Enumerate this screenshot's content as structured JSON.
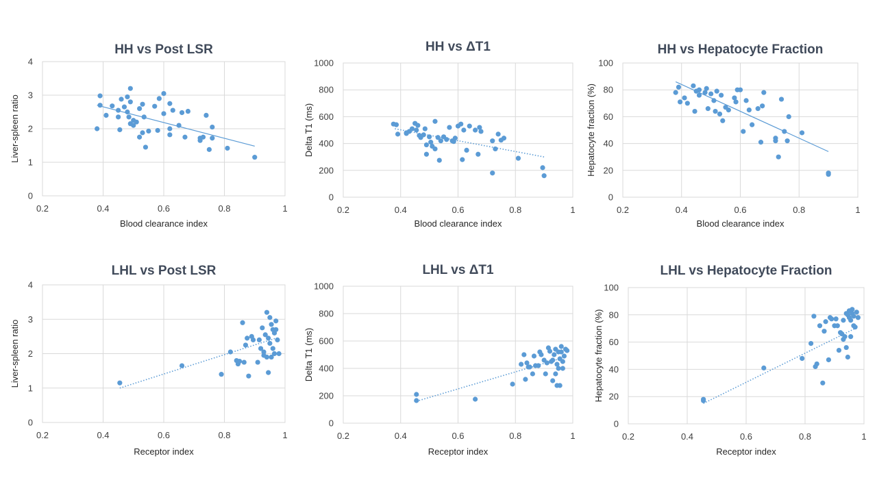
{
  "chart_data": [
    {
      "type": "scatter",
      "title": "HH vs Post LSR",
      "xlabel": "Blood clearance index",
      "ylabel": "Liver-spleen ratio",
      "xlim": [
        0.2,
        1
      ],
      "ylim": [
        0,
        4
      ],
      "xticks": [
        "0.2",
        "0.4",
        "0.6",
        "0.8",
        "1"
      ],
      "yticks": [
        "0",
        "1",
        "2",
        "3",
        "4"
      ],
      "trendline": {
        "style": "solid",
        "from": [
          0.38,
          2.7
        ],
        "to": [
          0.9,
          1.48
        ]
      },
      "points": [
        [
          0.38,
          2.0
        ],
        [
          0.39,
          2.98
        ],
        [
          0.39,
          2.7
        ],
        [
          0.41,
          2.4
        ],
        [
          0.43,
          2.68
        ],
        [
          0.45,
          2.35
        ],
        [
          0.45,
          2.55
        ],
        [
          0.455,
          1.97
        ],
        [
          0.46,
          2.88
        ],
        [
          0.47,
          2.65
        ],
        [
          0.48,
          2.5
        ],
        [
          0.48,
          2.95
        ],
        [
          0.485,
          2.35
        ],
        [
          0.49,
          3.2
        ],
        [
          0.49,
          2.8
        ],
        [
          0.49,
          2.15
        ],
        [
          0.5,
          2.1
        ],
        [
          0.5,
          2.25
        ],
        [
          0.51,
          2.2
        ],
        [
          0.52,
          2.6
        ],
        [
          0.52,
          1.75
        ],
        [
          0.53,
          2.73
        ],
        [
          0.53,
          1.88
        ],
        [
          0.535,
          2.35
        ],
        [
          0.54,
          1.45
        ],
        [
          0.55,
          1.93
        ],
        [
          0.57,
          2.67
        ],
        [
          0.58,
          1.95
        ],
        [
          0.585,
          2.9
        ],
        [
          0.6,
          3.05
        ],
        [
          0.6,
          2.45
        ],
        [
          0.62,
          2.75
        ],
        [
          0.62,
          2.0
        ],
        [
          0.62,
          1.82
        ],
        [
          0.63,
          2.55
        ],
        [
          0.65,
          2.1
        ],
        [
          0.66,
          2.48
        ],
        [
          0.67,
          1.75
        ],
        [
          0.68,
          2.52
        ],
        [
          0.72,
          1.72
        ],
        [
          0.72,
          1.65
        ],
        [
          0.73,
          1.75
        ],
        [
          0.74,
          2.4
        ],
        [
          0.75,
          1.38
        ],
        [
          0.76,
          2.05
        ],
        [
          0.76,
          1.72
        ],
        [
          0.81,
          1.42
        ],
        [
          0.9,
          1.15
        ]
      ]
    },
    {
      "type": "scatter",
      "title": "HH vs ΔT1",
      "xlabel": "Blood clearance index",
      "ylabel": "Delta T1 (ms)",
      "xlim": [
        0.2,
        1
      ],
      "ylim": [
        0,
        1000
      ],
      "xticks": [
        "0.2",
        "0.4",
        "0.6",
        "0.8",
        "1"
      ],
      "yticks": [
        "0",
        "200",
        "400",
        "600",
        "800",
        "1000"
      ],
      "trendline": {
        "style": "dotted",
        "from": [
          0.38,
          510
        ],
        "to": [
          0.9,
          300
        ]
      },
      "points": [
        [
          0.375,
          545
        ],
        [
          0.385,
          540
        ],
        [
          0.39,
          470
        ],
        [
          0.42,
          475
        ],
        [
          0.42,
          480
        ],
        [
          0.43,
          490
        ],
        [
          0.44,
          510
        ],
        [
          0.45,
          550
        ],
        [
          0.455,
          500
        ],
        [
          0.46,
          535
        ],
        [
          0.465,
          460
        ],
        [
          0.47,
          445
        ],
        [
          0.48,
          465
        ],
        [
          0.485,
          510
        ],
        [
          0.49,
          320
        ],
        [
          0.49,
          390
        ],
        [
          0.5,
          450
        ],
        [
          0.505,
          410
        ],
        [
          0.51,
          380
        ],
        [
          0.52,
          360
        ],
        [
          0.52,
          565
        ],
        [
          0.53,
          445
        ],
        [
          0.535,
          275
        ],
        [
          0.54,
          420
        ],
        [
          0.55,
          450
        ],
        [
          0.56,
          430
        ],
        [
          0.57,
          520
        ],
        [
          0.58,
          420
        ],
        [
          0.585,
          415
        ],
        [
          0.59,
          440
        ],
        [
          0.6,
          530
        ],
        [
          0.61,
          545
        ],
        [
          0.615,
          280
        ],
        [
          0.62,
          500
        ],
        [
          0.63,
          350
        ],
        [
          0.64,
          530
        ],
        [
          0.66,
          500
        ],
        [
          0.67,
          320
        ],
        [
          0.675,
          520
        ],
        [
          0.68,
          490
        ],
        [
          0.72,
          180
        ],
        [
          0.72,
          420
        ],
        [
          0.73,
          360
        ],
        [
          0.74,
          470
        ],
        [
          0.75,
          425
        ],
        [
          0.76,
          440
        ],
        [
          0.81,
          290
        ],
        [
          0.895,
          220
        ],
        [
          0.9,
          160
        ]
      ]
    },
    {
      "type": "scatter",
      "title": "HH vs Hepatocyte Fraction",
      "xlabel": "Blood clearance index",
      "ylabel": "Hepatocyte fraction (%)",
      "xlim": [
        0.2,
        1
      ],
      "ylim": [
        0,
        100
      ],
      "xticks": [
        "0.2",
        "0.4",
        "0.6",
        "0.8",
        "1"
      ],
      "yticks": [
        "0",
        "20",
        "40",
        "60",
        "80",
        "100"
      ],
      "trendline": {
        "style": "solid",
        "from": [
          0.38,
          86
        ],
        "to": [
          0.9,
          34
        ]
      },
      "points": [
        [
          0.38,
          78
        ],
        [
          0.39,
          82
        ],
        [
          0.395,
          71
        ],
        [
          0.41,
          74
        ],
        [
          0.42,
          70
        ],
        [
          0.44,
          83
        ],
        [
          0.445,
          64
        ],
        [
          0.45,
          79
        ],
        [
          0.46,
          76
        ],
        [
          0.46,
          80
        ],
        [
          0.48,
          78
        ],
        [
          0.485,
          81
        ],
        [
          0.49,
          66
        ],
        [
          0.5,
          77
        ],
        [
          0.51,
          72
        ],
        [
          0.515,
          64
        ],
        [
          0.52,
          79
        ],
        [
          0.53,
          62
        ],
        [
          0.535,
          76
        ],
        [
          0.54,
          57
        ],
        [
          0.55,
          67
        ],
        [
          0.56,
          65
        ],
        [
          0.58,
          74
        ],
        [
          0.585,
          71
        ],
        [
          0.59,
          80
        ],
        [
          0.6,
          80
        ],
        [
          0.61,
          49
        ],
        [
          0.62,
          72
        ],
        [
          0.63,
          65
        ],
        [
          0.64,
          54
        ],
        [
          0.66,
          66
        ],
        [
          0.67,
          41
        ],
        [
          0.675,
          68
        ],
        [
          0.68,
          78
        ],
        [
          0.72,
          44
        ],
        [
          0.72,
          42
        ],
        [
          0.73,
          30
        ],
        [
          0.74,
          73
        ],
        [
          0.75,
          49
        ],
        [
          0.76,
          42
        ],
        [
          0.765,
          60
        ],
        [
          0.81,
          48
        ],
        [
          0.9,
          17
        ],
        [
          0.9,
          18
        ]
      ]
    },
    {
      "type": "scatter",
      "title": "LHL vs Post LSR",
      "xlabel": "Receptor index",
      "ylabel": "Liver-spleen ratio",
      "xlim": [
        0.2,
        1
      ],
      "ylim": [
        0,
        4
      ],
      "xticks": [
        "0.2",
        "0.4",
        "0.6",
        "0.8",
        "1"
      ],
      "yticks": [
        "0",
        "1",
        "2",
        "3",
        "4"
      ],
      "trendline": {
        "style": "dotted",
        "from": [
          0.455,
          1.0
        ],
        "to": [
          0.97,
          2.45
        ]
      },
      "points": [
        [
          0.455,
          1.15
        ],
        [
          0.66,
          1.65
        ],
        [
          0.79,
          1.4
        ],
        [
          0.82,
          2.05
        ],
        [
          0.84,
          1.8
        ],
        [
          0.845,
          1.7
        ],
        [
          0.85,
          1.78
        ],
        [
          0.86,
          2.9
        ],
        [
          0.865,
          1.75
        ],
        [
          0.87,
          2.25
        ],
        [
          0.875,
          2.45
        ],
        [
          0.88,
          1.35
        ],
        [
          0.89,
          2.5
        ],
        [
          0.895,
          2.4
        ],
        [
          0.91,
          1.75
        ],
        [
          0.915,
          2.4
        ],
        [
          0.92,
          2.15
        ],
        [
          0.925,
          2.75
        ],
        [
          0.93,
          1.95
        ],
        [
          0.93,
          2.05
        ],
        [
          0.935,
          2.55
        ],
        [
          0.94,
          3.2
        ],
        [
          0.94,
          1.9
        ],
        [
          0.945,
          2.45
        ],
        [
          0.945,
          1.45
        ],
        [
          0.95,
          3.05
        ],
        [
          0.95,
          2.3
        ],
        [
          0.955,
          1.9
        ],
        [
          0.955,
          2.85
        ],
        [
          0.96,
          2.7
        ],
        [
          0.96,
          2.15
        ],
        [
          0.965,
          2.6
        ],
        [
          0.965,
          2.0
        ],
        [
          0.97,
          2.95
        ],
        [
          0.97,
          2.7
        ],
        [
          0.975,
          2.4
        ],
        [
          0.98,
          2.0
        ]
      ]
    },
    {
      "type": "scatter",
      "title": "LHL vs ΔT1",
      "xlabel": "Receptor index",
      "ylabel": "Delta T1 (ms)",
      "xlim": [
        0.2,
        1
      ],
      "ylim": [
        0,
        1000
      ],
      "xticks": [
        "0.2",
        "0.4",
        "0.6",
        "0.8",
        "1"
      ],
      "yticks": [
        "0",
        "200",
        "400",
        "600",
        "800",
        "1000"
      ],
      "trendline": {
        "style": "dotted",
        "from": [
          0.455,
          160
        ],
        "to": [
          0.97,
          480
        ]
      },
      "points": [
        [
          0.455,
          210
        ],
        [
          0.455,
          165
        ],
        [
          0.66,
          175
        ],
        [
          0.79,
          285
        ],
        [
          0.82,
          430
        ],
        [
          0.83,
          500
        ],
        [
          0.835,
          320
        ],
        [
          0.84,
          440
        ],
        [
          0.845,
          410
        ],
        [
          0.85,
          410
        ],
        [
          0.86,
          360
        ],
        [
          0.865,
          490
        ],
        [
          0.87,
          420
        ],
        [
          0.88,
          420
        ],
        [
          0.885,
          520
        ],
        [
          0.89,
          500
        ],
        [
          0.9,
          460
        ],
        [
          0.905,
          360
        ],
        [
          0.91,
          440
        ],
        [
          0.915,
          550
        ],
        [
          0.92,
          525
        ],
        [
          0.925,
          450
        ],
        [
          0.93,
          310
        ],
        [
          0.93,
          460
        ],
        [
          0.935,
          500
        ],
        [
          0.94,
          540
        ],
        [
          0.94,
          360
        ],
        [
          0.945,
          430
        ],
        [
          0.945,
          275
        ],
        [
          0.95,
          520
        ],
        [
          0.95,
          400
        ],
        [
          0.955,
          275
        ],
        [
          0.955,
          470
        ],
        [
          0.96,
          560
        ],
        [
          0.96,
          520
        ],
        [
          0.965,
          450
        ],
        [
          0.965,
          400
        ],
        [
          0.97,
          490
        ],
        [
          0.975,
          540
        ],
        [
          0.98,
          530
        ]
      ]
    },
    {
      "type": "scatter",
      "title": "LHL vs Hepatocyte Fraction",
      "xlabel": "Receptor index",
      "ylabel": "Hepatocyte fraction (%)",
      "xlim": [
        0.2,
        1
      ],
      "ylim": [
        0,
        100
      ],
      "xticks": [
        "0.2",
        "0.4",
        "0.6",
        "0.8",
        "1"
      ],
      "yticks": [
        "0",
        "20",
        "40",
        "60",
        "80",
        "100"
      ],
      "trendline": {
        "style": "dotted",
        "from": [
          0.455,
          15
        ],
        "to": [
          0.97,
          70
        ]
      },
      "points": [
        [
          0.455,
          18
        ],
        [
          0.455,
          17
        ],
        [
          0.66,
          41
        ],
        [
          0.79,
          48
        ],
        [
          0.82,
          59
        ],
        [
          0.83,
          79
        ],
        [
          0.835,
          42
        ],
        [
          0.84,
          44
        ],
        [
          0.85,
          72
        ],
        [
          0.86,
          30
        ],
        [
          0.865,
          68
        ],
        [
          0.87,
          75
        ],
        [
          0.88,
          47
        ],
        [
          0.885,
          78
        ],
        [
          0.89,
          77
        ],
        [
          0.9,
          72
        ],
        [
          0.905,
          77
        ],
        [
          0.91,
          72
        ],
        [
          0.915,
          54
        ],
        [
          0.92,
          67
        ],
        [
          0.925,
          66
        ],
        [
          0.93,
          62
        ],
        [
          0.93,
          76
        ],
        [
          0.935,
          64
        ],
        [
          0.94,
          81
        ],
        [
          0.94,
          56
        ],
        [
          0.945,
          49
        ],
        [
          0.945,
          80
        ],
        [
          0.95,
          83
        ],
        [
          0.95,
          78
        ],
        [
          0.955,
          76
        ],
        [
          0.955,
          64
        ],
        [
          0.96,
          84
        ],
        [
          0.96,
          81
        ],
        [
          0.965,
          79
        ],
        [
          0.965,
          72
        ],
        [
          0.97,
          71
        ],
        [
          0.975,
          82
        ],
        [
          0.98,
          78
        ]
      ]
    }
  ]
}
